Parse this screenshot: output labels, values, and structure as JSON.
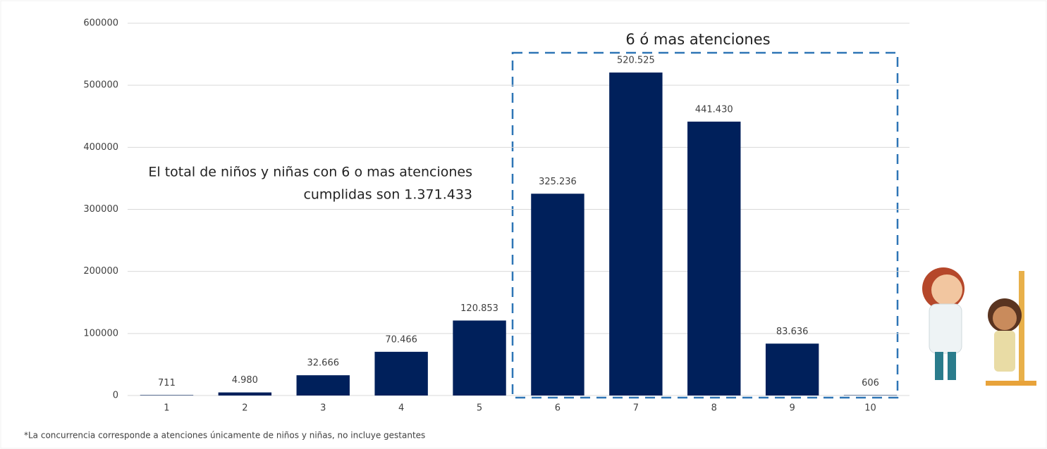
{
  "chart_data": {
    "type": "bar",
    "categories": [
      "1",
      "2",
      "3",
      "4",
      "5",
      "6",
      "7",
      "8",
      "9",
      "10"
    ],
    "values": [
      711,
      4980,
      32666,
      70466,
      120853,
      325236,
      520525,
      441430,
      83636,
      606
    ],
    "value_labels": [
      "711",
      "4.980",
      "32.666",
      "70.466",
      "120.853",
      "325.236",
      "520.525",
      "441.430",
      "83.636",
      "606"
    ],
    "color": "#00205b",
    "ylim": [
      0,
      600000
    ],
    "yticks": [
      0,
      100000,
      200000,
      300000,
      400000,
      500000,
      600000
    ],
    "grid": true,
    "box_title": "6 ó mas atenciones",
    "annotation": [
      "El total de niños y niñas con 6 o mas atenciones",
      "cumplidas son 1.371.433"
    ],
    "footnote": "*La concurrencia corresponde a atenciones únicamente de niños y niñas, no incluye gestantes"
  }
}
